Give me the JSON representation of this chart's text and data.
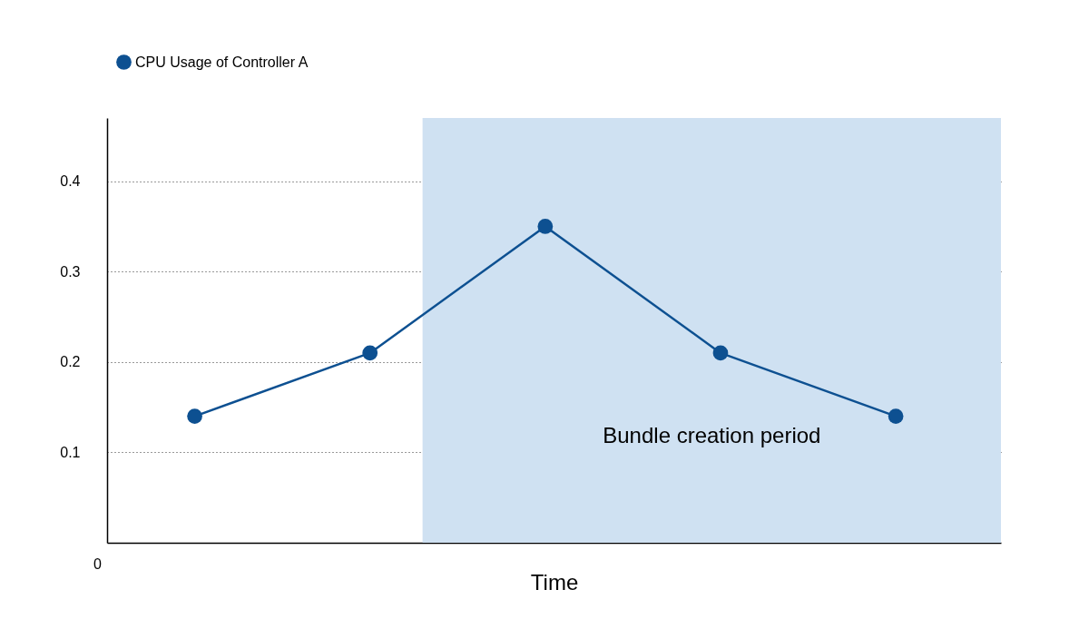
{
  "chart_data": {
    "type": "line",
    "xlabel": "Time",
    "categories": [
      null,
      null,
      null,
      null,
      null
    ],
    "ylim": [
      0,
      0.47
    ],
    "yticks": [
      0.1,
      0.2,
      0.3,
      0.4
    ],
    "grid": "y",
    "legend": "top left",
    "marker": "circle",
    "annotations": [
      "0",
      "Bundle creation period"
    ],
    "series": [
      {
        "name": "CPU Usage of Controller A",
        "color": "#0d5091",
        "values": [
          0.14,
          0.21,
          0.35,
          0.21,
          0.14
        ]
      }
    ]
  }
}
